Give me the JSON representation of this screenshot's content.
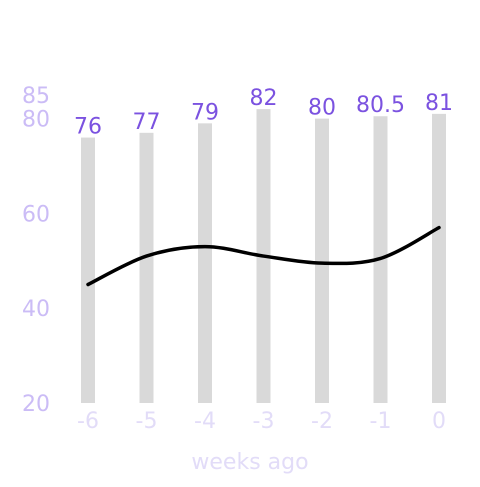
{
  "chart_data": {
    "type": "bar",
    "xlabel": "weeks ago",
    "categories": [
      "-6",
      "-5",
      "-4",
      "-3",
      "-2",
      "-1",
      "0"
    ],
    "ylim": [
      20,
      85
    ],
    "yticks": [
      "20",
      "40",
      "60",
      "80",
      "85"
    ],
    "grid": false,
    "series": [
      {
        "kind": "bar",
        "values": [
          76,
          77,
          79,
          82,
          80,
          80.5,
          81
        ],
        "labels": [
          "76",
          "77",
          "79",
          "82",
          "80",
          "80.5",
          "81"
        ]
      },
      {
        "kind": "line",
        "smooth": true,
        "values": [
          45,
          51,
          53,
          51,
          49.5,
          50.5,
          57
        ]
      }
    ],
    "colors": {
      "bar": "#d9d9d9",
      "line": "#000000",
      "data_label": "#7b52e0",
      "tick_label": "#cbbcf6",
      "x_tick_label": "#e2dcf8",
      "axis_label": "#e2dcf8"
    }
  }
}
